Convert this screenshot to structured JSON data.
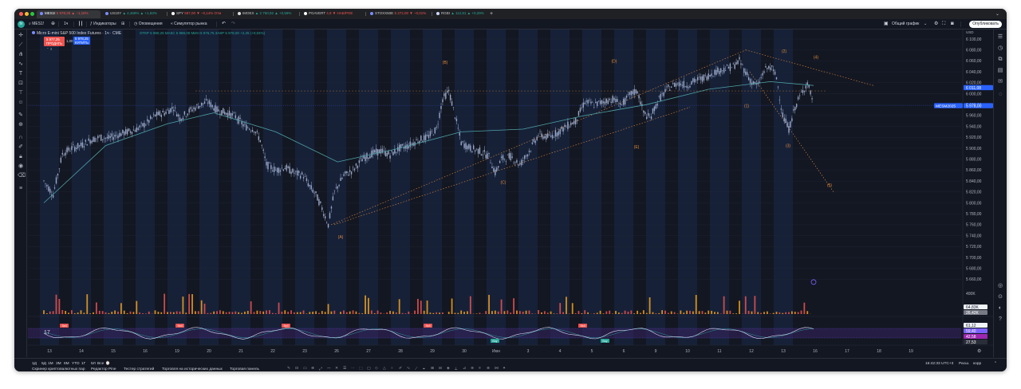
{
  "browser": {
    "tabs": [
      {
        "label": "MES1!",
        "change": "5 978,25 ▲ −1,16%",
        "active": true
      },
      {
        "label": "US10Y",
        "change": "▲ 4,469% ▲ +1,83%"
      },
      {
        "label": "SPY",
        "change": "597,00 ▼ −0,14% Отм"
      },
      {
        "label": "IMOEX",
        "change": "▲ 2 750,92 ▲ +0,59%"
      },
      {
        "label": "PGAVERT",
        "change": "4,9 ▼ НАБ/РОЕ"
      },
      {
        "label": "STOXX50E",
        "change": "5 272,00 ▼ −0,01%"
      },
      {
        "label": "RGBI",
        "change": "▲ 112,81 ▲ +0,29%"
      }
    ],
    "new_tab": "+"
  },
  "toolbar": {
    "symbol": "MES1!",
    "interval": "1ч",
    "indicators": "Индикаторы",
    "alerts": "Оповещения",
    "replay": "Симулятор рынка",
    "layout": "Общий график",
    "publish": "Опубликовать"
  },
  "legend": {
    "title": "Micro E-mini S&P 500 Index Futures · 1ч · CME",
    "ohlc": "ОТКР 5 980,25  МАКС 5 988,00  МИН 5 976,75  ЗАКР 5 978,00  +2,25 (+0,04%)",
    "sell_price": "5 977,25",
    "sell_label": "ПРОДАТЬ",
    "spread": "1,00",
    "buy_price": "5 978,25",
    "buy_label": "КУПИТЬ"
  },
  "price_axis": {
    "currency": "USD",
    "labels": [
      "6 100,00",
      "6 080,00",
      "6 060,00",
      "6 040,00",
      "6 020,00",
      "6 000,00",
      "5 980,00",
      "5 960,00",
      "5 940,00",
      "5 920,00",
      "5 900,00",
      "5 880,00",
      "5 860,00",
      "5 840,00",
      "5 820,00",
      "5 800,00",
      "5 780,00",
      "5 760,00",
      "5 740,00",
      "5 720,00",
      "5 700,00",
      "5 680,00",
      "5 660,00"
    ],
    "current_tag": "6 011,08",
    "symbol_tag": "MESM2025",
    "symbol_tag_price": "5 978,00",
    "volume_top": "400K",
    "volume_tags": [
      "64,83K",
      "26,42K"
    ],
    "osc_tags": [
      "61,12",
      "59,40",
      "42,58",
      "27,53"
    ]
  },
  "time_axis": {
    "labels": [
      "13",
      "14",
      "15",
      "16",
      "19",
      "20",
      "21",
      "22",
      "23",
      "26",
      "27",
      "28",
      "29",
      "30",
      "Июн",
      "3",
      "4",
      "5",
      "6",
      "9",
      "10",
      "11",
      "12",
      "13",
      "16",
      "17",
      "18",
      "19",
      "20"
    ]
  },
  "wave_labels": [
    "(A)",
    "(B)",
    "(C)",
    "(D)",
    "(E)",
    "(1)",
    "(2)",
    "(3)",
    "(4)",
    "(5)"
  ],
  "osc_badges": [
    "Sell",
    "Sell",
    "Sell",
    "Sell",
    "Sell",
    "Buy",
    "Buy"
  ],
  "bottom": {
    "ranges": [
      "1Д",
      "5Д",
      "1М",
      "3М",
      "6М",
      "YTD",
      "1Г",
      "5Л",
      "Все"
    ],
    "panels": [
      "Скринер криптовалютных пар",
      "Редактор Pine",
      "Тестер стратегий",
      "Торговля на исторических данных",
      "Торговая панель"
    ],
    "clock": "16:42:33 UTC+3",
    "session": "Расш.",
    "adj": "корр"
  },
  "colors": {
    "bg": "#131722",
    "session_band": "#1a2a4a",
    "candle": "#9aa8c8",
    "ma": "#4fa3a5",
    "wave": "#e08a3c",
    "up": "#26a69a",
    "down": "#ef5350",
    "osc": "#d8d8f0",
    "osc_band": "#3a2466"
  },
  "chart_data": {
    "type": "candlestick",
    "symbol": "MESM2025",
    "interval": "1h",
    "path_points": [
      [
        0,
        5840
      ],
      [
        6,
        5815
      ],
      [
        12,
        5890
      ],
      [
        18,
        5900
      ],
      [
        24,
        5905
      ],
      [
        30,
        5915
      ],
      [
        36,
        5920
      ],
      [
        42,
        5918
      ],
      [
        48,
        5925
      ],
      [
        54,
        5930
      ],
      [
        60,
        5935
      ],
      [
        66,
        5945
      ],
      [
        72,
        5960
      ],
      [
        78,
        5965
      ],
      [
        84,
        5975
      ],
      [
        88,
        5955
      ],
      [
        94,
        5968
      ],
      [
        100,
        5978
      ],
      [
        106,
        5985
      ],
      [
        112,
        5970
      ],
      [
        118,
        5965
      ],
      [
        124,
        5958
      ],
      [
        130,
        5940
      ],
      [
        136,
        5935
      ],
      [
        140,
        5915
      ],
      [
        144,
        5870
      ],
      [
        150,
        5860
      ],
      [
        156,
        5865
      ],
      [
        162,
        5855
      ],
      [
        168,
        5850
      ],
      [
        172,
        5830
      ],
      [
        176,
        5815
      ],
      [
        180,
        5790
      ],
      [
        184,
        5760
      ],
      [
        188,
        5820
      ],
      [
        194,
        5850
      ],
      [
        200,
        5860
      ],
      [
        206,
        5880
      ],
      [
        212,
        5890
      ],
      [
        218,
        5895
      ],
      [
        224,
        5888
      ],
      [
        230,
        5900
      ],
      [
        236,
        5905
      ],
      [
        242,
        5915
      ],
      [
        248,
        5920
      ],
      [
        254,
        5935
      ],
      [
        258,
        5990
      ],
      [
        262,
        6005
      ],
      [
        266,
        5960
      ],
      [
        270,
        5910
      ],
      [
        276,
        5900
      ],
      [
        282,
        5895
      ],
      [
        288,
        5885
      ],
      [
        292,
        5855
      ],
      [
        296,
        5880
      ],
      [
        302,
        5885
      ],
      [
        308,
        5870
      ],
      [
        314,
        5895
      ],
      [
        320,
        5925
      ],
      [
        326,
        5920
      ],
      [
        332,
        5928
      ],
      [
        338,
        5940
      ],
      [
        344,
        5950
      ],
      [
        350,
        5985
      ],
      [
        356,
        5980
      ],
      [
        362,
        5985
      ],
      [
        368,
        5990
      ],
      [
        374,
        5980
      ],
      [
        380,
        6000
      ],
      [
        384,
        6005
      ],
      [
        388,
        5965
      ],
      [
        392,
        5955
      ],
      [
        398,
        5990
      ],
      [
        404,
        6010
      ],
      [
        410,
        6020
      ],
      [
        416,
        6015
      ],
      [
        422,
        6025
      ],
      [
        428,
        6030
      ],
      [
        434,
        6040
      ],
      [
        440,
        6045
      ],
      [
        446,
        6050
      ],
      [
        450,
        6060
      ],
      [
        454,
        6040
      ],
      [
        458,
        6020
      ],
      [
        462,
        6015
      ],
      [
        466,
        6042
      ],
      [
        470,
        6050
      ],
      [
        474,
        6030
      ],
      [
        478,
        5960
      ],
      [
        482,
        5935
      ],
      [
        486,
        5975
      ],
      [
        490,
        6000
      ],
      [
        494,
        6020
      ],
      [
        496,
        6000
      ],
      [
        498,
        5985
      ]
    ],
    "moving_average": [
      [
        0,
        5800
      ],
      [
        40,
        5905
      ],
      [
        80,
        5945
      ],
      [
        110,
        5965
      ],
      [
        150,
        5930
      ],
      [
        190,
        5875
      ],
      [
        230,
        5900
      ],
      [
        270,
        5930
      ],
      [
        310,
        5935
      ],
      [
        350,
        5960
      ],
      [
        390,
        5980
      ],
      [
        430,
        6008
      ],
      [
        470,
        6022
      ],
      [
        498,
        6015
      ]
    ]
  }
}
